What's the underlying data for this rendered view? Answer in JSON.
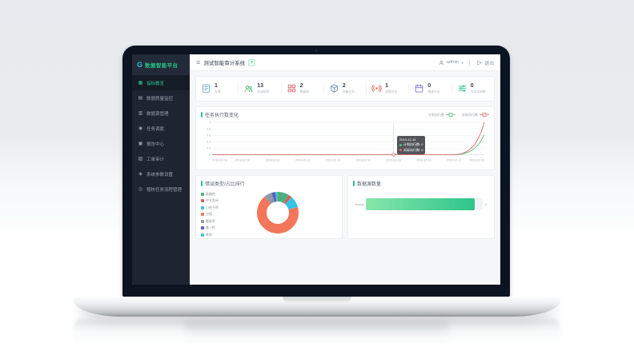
{
  "logo": {
    "mark": "G",
    "text": "数据智能平台"
  },
  "topbar": {
    "tab_label": "测试智能审计系统",
    "dropdown_glyph": "▾",
    "user_name": "admin",
    "user_caret": "▾",
    "logout_label": "退出"
  },
  "sidebar": {
    "items": [
      {
        "label": "指标概览",
        "icon": "dashboard-icon",
        "active": true
      },
      {
        "label": "数据质量监控",
        "icon": "monitor-icon",
        "active": false
      },
      {
        "label": "数据源管理",
        "icon": "database-icon",
        "active": false
      },
      {
        "label": "任务调度",
        "icon": "schedule-icon",
        "active": false
      },
      {
        "label": "报告中心",
        "icon": "report-icon",
        "active": false
      },
      {
        "label": "工单审计",
        "icon": "audit-icon",
        "active": false
      },
      {
        "label": "系统参数设置",
        "icon": "settings-icon",
        "active": false
      },
      {
        "label": "稽核任务流程管理",
        "icon": "workflow-icon",
        "active": false
      }
    ]
  },
  "stats": [
    {
      "icon": "clipboard-icon",
      "color": "#5ba8c9",
      "value": "1",
      "label": "方案"
    },
    {
      "icon": "users-icon",
      "color": "#49b87e",
      "value": "13",
      "label": "质量规则"
    },
    {
      "icon": "grid-icon",
      "color": "#e15f5f",
      "value": "2",
      "label": "数据源"
    },
    {
      "icon": "cube-icon",
      "color": "#6a8fb5",
      "value": "2",
      "label": "采集任务"
    },
    {
      "icon": "broadcast-icon",
      "color": "#e2584d",
      "value": "1",
      "label": "调度任务"
    },
    {
      "icon": "calendar-icon",
      "color": "#7b70d2",
      "value": "0",
      "label": "稽核任务"
    },
    {
      "icon": "sliders-icon",
      "color": "#2fbf8e",
      "value": "0",
      "label": "任务实例数"
    }
  ],
  "line_chart": {
    "type": "line",
    "title": "任务执行数变化",
    "legend": [
      {
        "name": "计划执行数",
        "color": "#57bd84"
      },
      {
        "name": "实际执行数",
        "color": "#e06a6a"
      }
    ],
    "x": [
      "2019-12-09",
      "2019-12-10",
      "2019-12-11",
      "2019-12-12",
      "2019-12-13",
      "2019-12-14",
      "2019-12-15",
      "2019-12-16",
      "2019-12-17",
      "2019-12-18"
    ],
    "y_ticks": [
      "1",
      "0.8",
      "0.6",
      "0.4",
      "0.2",
      "0"
    ],
    "ylim": [
      0,
      1
    ],
    "series": [
      {
        "name": "计划执行数",
        "color": "#57bd84",
        "values": [
          0,
          0,
          0,
          0,
          0,
          0,
          0,
          0,
          0,
          0.62
        ]
      },
      {
        "name": "实际执行数",
        "color": "#e06a6a",
        "values": [
          0,
          0,
          0,
          0,
          0,
          0,
          0,
          0,
          0,
          1.0
        ]
      }
    ],
    "tooltip": {
      "date": "2019-12-15",
      "rows": [
        {
          "name": "计划执行数",
          "value": "0",
          "color": "#57bd84"
        },
        {
          "name": "实际执行数",
          "value": "0",
          "color": "#e06a6a"
        }
      ]
    }
  },
  "donut_chart": {
    "type": "pie",
    "title": "错误类型/占比排行",
    "slices": [
      {
        "label": "准确性",
        "value": 9,
        "color": "#4fae7e"
      },
      {
        "label": "中文乱码",
        "value": 2.5,
        "color": "#df5a5a"
      },
      {
        "label": "口径不符",
        "value": 9,
        "color": "#35c3e8"
      },
      {
        "label": "空值",
        "value": 68.5,
        "color": "#f3765b"
      },
      {
        "label": "重复率",
        "value": 6,
        "color": "#8d99a6"
      },
      {
        "label": "唯一性",
        "value": 3,
        "color": "#5b5fc7"
      },
      {
        "label": "其他",
        "value": 2,
        "color": "#41c6cb"
      }
    ]
  },
  "bar_chart": {
    "type": "bar",
    "title": "数据源数量",
    "categories": [
      "mysql"
    ],
    "values": [
      2
    ],
    "max": 2,
    "bar_gradient": [
      "#88e6ac",
      "#2ec58b"
    ]
  }
}
